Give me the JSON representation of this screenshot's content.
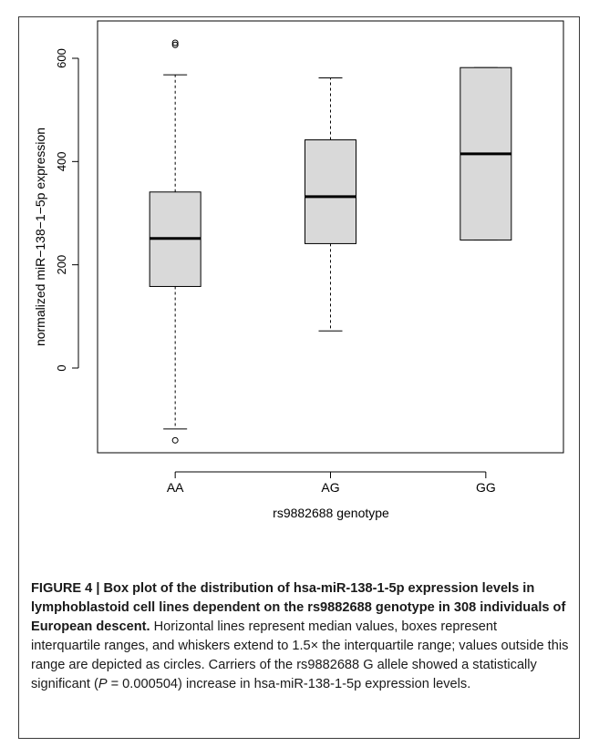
{
  "chart_data": {
    "type": "boxplot",
    "xlabel": "rs9882688 genotype",
    "ylabel": "normalized miR−138−1−5p expression",
    "ylim": [
      -165,
      655
    ],
    "yticks": [
      0,
      200,
      400,
      600
    ],
    "ytick_labels": [
      "0",
      "200",
      "400",
      "600"
    ],
    "categories": [
      "AA",
      "AG",
      "GG"
    ],
    "boxes": [
      {
        "category": "AA",
        "whisker_low": -118,
        "q1": 158,
        "median": 251,
        "q3": 341,
        "whisker_high": 568,
        "outliers": [
          -140,
          626,
          630
        ]
      },
      {
        "category": "AG",
        "whisker_low": 72,
        "q1": 241,
        "median": 332,
        "q3": 442,
        "whisker_high": 562,
        "outliers": []
      },
      {
        "category": "GG",
        "whisker_low": 248,
        "q1": 248,
        "median": 415,
        "q3": 582,
        "whisker_high": 582,
        "outliers": []
      }
    ],
    "box_fill": "#d9d9d9",
    "grid": false
  },
  "caption": {
    "figure_label": "FIGURE 4 | ",
    "title": "Box plot of the distribution of hsa-miR-138-1-5p expression levels in lymphoblastoid cell lines dependent on the rs9882688 genotype in 308 individuals of European descent.",
    "body_1": " Horizontal lines represent median values, boxes represent interquartile ranges, and whiskers extend to 1.5× the interquartile range; values outside this range are depicted as circles. Carriers of the rs9882688 G allele showed a statistically significant (",
    "p_symbol": "P",
    "body_2": " = 0.000504) increase in hsa-miR-138-1-5p expression levels."
  }
}
